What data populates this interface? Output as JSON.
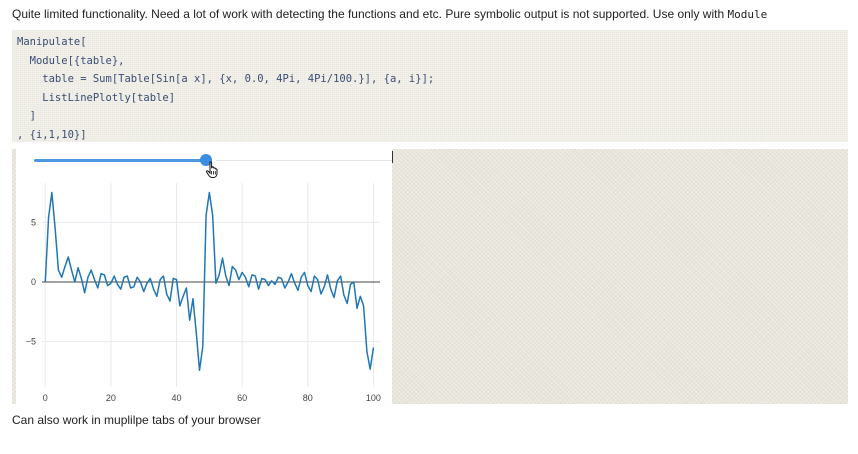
{
  "intro": {
    "text": "Quite limited functionality. Need a lot of work with detecting the functions and etc. Pure symbolic output is not supported. Use only with",
    "code_word": "Module"
  },
  "code_cell": {
    "lines": [
      "Manipulate[",
      "  Module[{table},",
      "    table = Sum[Table[Sin[a x], {x, 0.0, 4Pi, 4Pi/100.}], {a, i}];",
      "    ListLinePlotly[table]",
      "  ]",
      ", {i,1,10}]"
    ]
  },
  "output": {
    "slider": {
      "name": "i",
      "min": 1,
      "max": 10,
      "value_fraction": 0.52
    }
  },
  "chart_data": {
    "type": "line",
    "title": "",
    "xlabel": "",
    "ylabel": "",
    "xlim": [
      -1,
      102
    ],
    "ylim": [
      -8.8,
      8.3
    ],
    "x_ticks": [
      0,
      20,
      40,
      60,
      80,
      100
    ],
    "y_ticks": [
      -5,
      0,
      5
    ],
    "x_tick_labels": [
      "0",
      "20",
      "40",
      "60",
      "80",
      "100"
    ],
    "y_tick_labels": [
      "−5",
      "0",
      "5"
    ],
    "grid": true,
    "series": [
      {
        "color": "#1f77b4",
        "x": [
          0,
          1,
          2,
          3,
          4,
          5,
          6,
          7,
          8,
          9,
          10,
          11,
          12,
          13,
          14,
          15,
          16,
          17,
          18,
          19,
          20,
          21,
          22,
          23,
          24,
          25,
          26,
          27,
          28,
          29,
          30,
          31,
          32,
          33,
          34,
          35,
          36,
          37,
          38,
          39,
          40,
          41,
          42,
          43,
          44,
          45,
          46,
          47,
          48,
          49,
          50,
          51,
          52,
          53,
          54,
          55,
          56,
          57,
          58,
          59,
          60,
          61,
          62,
          63,
          64,
          65,
          66,
          67,
          68,
          69,
          70,
          71,
          72,
          73,
          74,
          75,
          76,
          77,
          78,
          79,
          80,
          81,
          82,
          83,
          84,
          85,
          86,
          87,
          88,
          89,
          90,
          91,
          92,
          93,
          94,
          95,
          96,
          97,
          98,
          99,
          100
        ],
        "y": [
          0,
          5.4,
          7.5,
          4.5,
          1.0,
          0.4,
          1.3,
          2.1,
          1.0,
          0.0,
          1.2,
          0.3,
          -0.9,
          0.4,
          1.0,
          0.2,
          -0.5,
          0.7,
          0.6,
          -0.3,
          -0.1,
          0.5,
          -0.2,
          -0.6,
          0.4,
          0.5,
          -0.5,
          -0.4,
          0.4,
          0.0,
          -0.8,
          -0.1,
          0.3,
          -0.6,
          -1.2,
          0.2,
          0.5,
          -1.0,
          -1.6,
          0.3,
          0.2,
          -2.0,
          -1.2,
          -0.5,
          -3.2,
          -1.4,
          -4.2,
          -7.4,
          -5.4,
          5.6,
          7.5,
          5.6,
          -0.1,
          0.6,
          2.0,
          0.5,
          -0.3,
          1.3,
          1.0,
          0.2,
          0.8,
          0.4,
          -0.4,
          0.6,
          0.5,
          -0.6,
          0.3,
          0.2,
          -0.3,
          0.1,
          -0.2,
          0.4,
          0.3,
          -0.5,
          0.0,
          0.7,
          -0.1,
          -0.7,
          0.4,
          0.8,
          -0.3,
          -0.8,
          0.5,
          0.2,
          -1.0,
          -0.4,
          0.6,
          -0.6,
          -1.3,
          0.1,
          0.5,
          -1.1,
          -1.8,
          -0.2,
          0.0,
          -2.2,
          -1.2,
          -2.0,
          -5.8,
          -7.3,
          -5.5
        ]
      }
    ]
  },
  "outro": {
    "text": "Can also work in muplilpe tabs of your browser"
  },
  "colors": {
    "code_background": "#efede4",
    "code_text": "#3a4d74",
    "code_number": "#b05a4b",
    "slider_accent": "#3a8de0",
    "line_color": "#1f77b4",
    "gridline": "#e8eaf0"
  },
  "icons": {
    "cursor": "hand-pointer-icon"
  }
}
